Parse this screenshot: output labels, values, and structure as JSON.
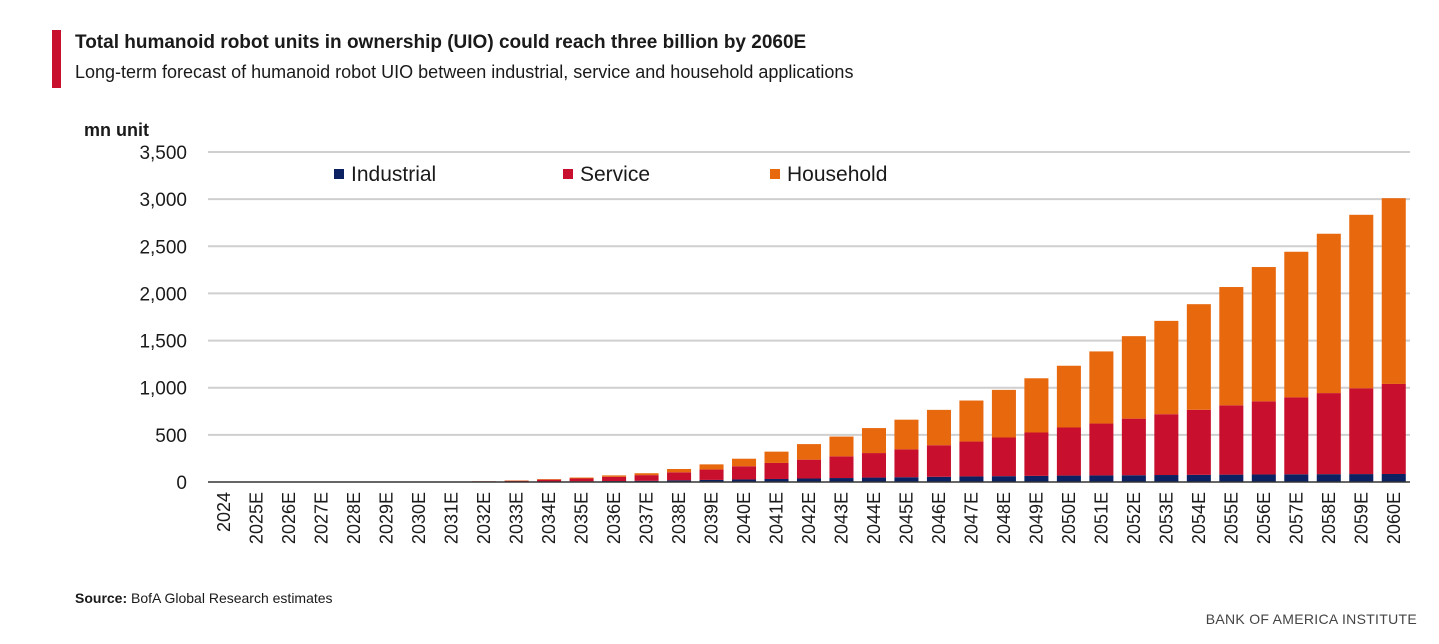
{
  "header": {
    "title": "Total humanoid robot units in ownership (UIO) could reach three billion by 2060E",
    "subtitle": "Long-term forecast of humanoid robot UIO between industrial, service and household applications"
  },
  "footer": {
    "source_label": "Source:",
    "source_text": " BofA Global Research estimates",
    "brand": "BANK OF AMERICA INSTITUTE"
  },
  "colors": {
    "industrial": "#0b2161",
    "service": "#c8102e",
    "household": "#e8680e",
    "accent": "#c8102e",
    "grid": "#cfcfcf"
  },
  "chart_data": {
    "type": "bar",
    "stacked": true,
    "title": "Total humanoid robot units in ownership (UIO) could reach three billion by 2060E",
    "ylabel": "mn unit",
    "xlabel": "",
    "ylim": [
      0,
      3500
    ],
    "yticks": [
      0,
      500,
      1000,
      1500,
      2000,
      2500,
      3000,
      3500
    ],
    "ytick_labels": [
      "0",
      "500",
      "1,000",
      "1,500",
      "2,000",
      "2,500",
      "3,000",
      "3,500"
    ],
    "grid": true,
    "legend_position": "top",
    "categories": [
      "2024",
      "2025E",
      "2026E",
      "2027E",
      "2028E",
      "2029E",
      "2030E",
      "2031E",
      "2032E",
      "2033E",
      "2034E",
      "2035E",
      "2036E",
      "2037E",
      "2038E",
      "2039E",
      "2040E",
      "2041E",
      "2042E",
      "2043E",
      "2044E",
      "2045E",
      "2046E",
      "2047E",
      "2048E",
      "2049E",
      "2050E",
      "2051E",
      "2052E",
      "2053E",
      "2054E",
      "2055E",
      "2056E",
      "2057E",
      "2058E",
      "2059E",
      "2060E"
    ],
    "series": [
      {
        "name": "Industrial",
        "color": "#0b2161",
        "values": [
          0,
          0,
          0,
          0,
          0,
          0,
          1,
          1,
          2,
          3,
          5,
          7,
          10,
          13,
          18,
          22,
          27,
          32,
          37,
          42,
          47,
          51,
          55,
          59,
          62,
          65,
          68,
          70,
          72,
          74,
          76,
          78,
          80,
          82,
          83,
          84,
          85
        ]
      },
      {
        "name": "Service",
        "color": "#c8102e",
        "values": [
          0,
          0,
          0,
          0,
          0,
          0,
          1,
          2,
          4,
          10,
          20,
          30,
          45,
          60,
          85,
          110,
          140,
          170,
          200,
          230,
          260,
          295,
          335,
          370,
          410,
          460,
          510,
          550,
          600,
          645,
          690,
          735,
          775,
          815,
          860,
          910,
          955
        ]
      },
      {
        "name": "Household",
        "color": "#e8680e",
        "values": [
          0,
          0,
          0,
          0,
          0,
          0,
          0,
          1,
          2,
          4,
          6,
          10,
          15,
          20,
          35,
          55,
          80,
          120,
          165,
          210,
          265,
          315,
          375,
          435,
          505,
          575,
          655,
          765,
          875,
          990,
          1120,
          1255,
          1425,
          1545,
          1690,
          1840,
          1970
        ]
      }
    ]
  }
}
